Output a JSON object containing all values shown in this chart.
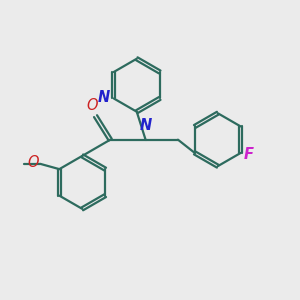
{
  "bg_color": "#ebebeb",
  "bond_color": "#2d6b5e",
  "bond_width": 1.6,
  "dbo": 0.055,
  "atom_colors": {
    "N": "#2222cc",
    "O": "#cc2222",
    "F": "#cc22cc"
  },
  "fs": 10.5
}
